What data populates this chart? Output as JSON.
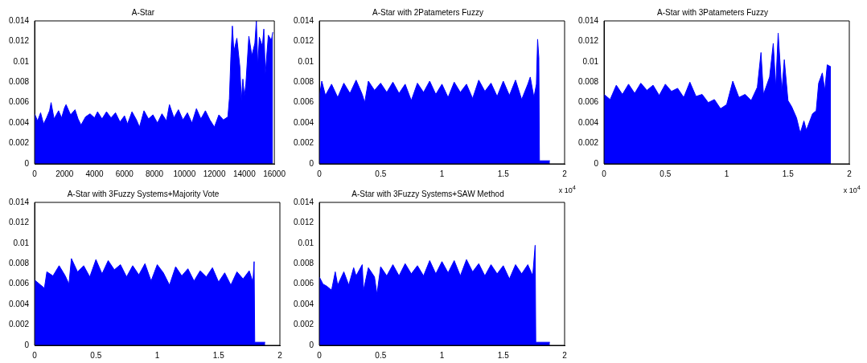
{
  "chart_data": [
    {
      "type": "area",
      "title": "A-Star",
      "xlim": [
        0,
        16000
      ],
      "xticks": [
        0,
        2000,
        4000,
        6000,
        8000,
        10000,
        12000,
        14000,
        16000
      ],
      "ylim": [
        0,
        0.014
      ],
      "yticks": [
        0,
        0.002,
        0.004,
        0.006,
        0.008,
        0.01,
        0.012,
        0.014
      ],
      "grid": false,
      "legend": false,
      "series": [
        {
          "color": "#0000ff",
          "x": [
            0,
            200,
            400,
            600,
            800,
            1000,
            1100,
            1300,
            1600,
            1800,
            2000,
            2100,
            2400,
            2700,
            2900,
            3100,
            3400,
            3700,
            4000,
            4200,
            4500,
            4800,
            5100,
            5400,
            5700,
            6000,
            6200,
            6500,
            6800,
            7000,
            7300,
            7600,
            7900,
            8200,
            8500,
            8800,
            9000,
            9300,
            9600,
            9900,
            10200,
            10500,
            10800,
            11100,
            11400,
            11700,
            12000,
            12300,
            12600,
            12900,
            13000,
            13100,
            13200,
            13300,
            13500,
            13700,
            13800,
            13900,
            14000,
            14100,
            14300,
            14500,
            14700,
            14800,
            14900,
            15000,
            15200,
            15300,
            15400,
            15600,
            15800,
            15900
          ],
          "values": [
            0.0049,
            0.0042,
            0.005,
            0.0039,
            0.0045,
            0.0052,
            0.006,
            0.0044,
            0.0052,
            0.0045,
            0.0055,
            0.0058,
            0.0048,
            0.0053,
            0.0044,
            0.0038,
            0.0046,
            0.0049,
            0.0045,
            0.0051,
            0.0044,
            0.0051,
            0.0045,
            0.005,
            0.0041,
            0.0047,
            0.0039,
            0.0051,
            0.0043,
            0.0036,
            0.0052,
            0.0044,
            0.0048,
            0.004,
            0.0049,
            0.0042,
            0.0058,
            0.0045,
            0.0053,
            0.0043,
            0.005,
            0.004,
            0.0054,
            0.0044,
            0.0052,
            0.0043,
            0.0036,
            0.0048,
            0.0043,
            0.0046,
            0.0064,
            0.0105,
            0.0135,
            0.011,
            0.0123,
            0.0095,
            0.0062,
            0.0083,
            0.0066,
            0.0078,
            0.0125,
            0.0106,
            0.0118,
            0.014,
            0.0096,
            0.0124,
            0.0115,
            0.0132,
            0.0088,
            0.0126,
            0.0121,
            0.0129
          ]
        }
      ]
    },
    {
      "type": "area",
      "title": "A-Star with 2Patameters Fuzzy",
      "annotations": [
        "x 10$^{4}$"
      ],
      "xlim": [
        0,
        2
      ],
      "xticks": [
        0,
        0.5,
        1,
        1.5,
        2
      ],
      "ylim": [
        0,
        0.014
      ],
      "yticks": [
        0,
        0.002,
        0.004,
        0.006,
        0.008,
        0.01,
        0.012,
        0.014
      ],
      "grid": false,
      "legend": false,
      "series": [
        {
          "color": "#0000ff",
          "x": [
            0,
            0.02,
            0.05,
            0.1,
            0.15,
            0.2,
            0.25,
            0.3,
            0.35,
            0.37,
            0.4,
            0.45,
            0.5,
            0.55,
            0.6,
            0.65,
            0.7,
            0.75,
            0.8,
            0.85,
            0.9,
            0.95,
            1,
            1.05,
            1.1,
            1.15,
            1.2,
            1.25,
            1.3,
            1.35,
            1.4,
            1.45,
            1.5,
            1.55,
            1.6,
            1.65,
            1.7,
            1.72,
            1.75,
            1.77,
            1.78,
            1.79,
            1.795,
            1.88
          ],
          "values": [
            0.0065,
            0.0081,
            0.0067,
            0.0078,
            0.0065,
            0.0079,
            0.0069,
            0.0082,
            0.0068,
            0.006,
            0.0081,
            0.0072,
            0.0079,
            0.007,
            0.008,
            0.0069,
            0.0078,
            0.0062,
            0.0079,
            0.007,
            0.0081,
            0.0068,
            0.0078,
            0.0065,
            0.008,
            0.007,
            0.0078,
            0.0064,
            0.0082,
            0.0071,
            0.0079,
            0.0066,
            0.0081,
            0.0067,
            0.0082,
            0.0063,
            0.0078,
            0.0085,
            0.0065,
            0.0078,
            0.0122,
            0.0104,
            0.0003,
            0.0003
          ]
        }
      ]
    },
    {
      "type": "area",
      "title": "A-Star with 3Patameters Fuzzy",
      "annotations": [
        "x 10$^{4}$"
      ],
      "xlim": [
        0,
        2
      ],
      "xticks": [
        0,
        0.5,
        1,
        1.5,
        2
      ],
      "ylim": [
        0,
        0.014
      ],
      "yticks": [
        0,
        0.002,
        0.004,
        0.006,
        0.008,
        0.01,
        0.012,
        0.014
      ],
      "grid": false,
      "legend": false,
      "series": [
        {
          "color": "#0000ff",
          "x": [
            0,
            0.05,
            0.1,
            0.15,
            0.2,
            0.25,
            0.3,
            0.35,
            0.4,
            0.45,
            0.5,
            0.55,
            0.6,
            0.65,
            0.7,
            0.75,
            0.8,
            0.85,
            0.9,
            0.95,
            1,
            1.05,
            1.1,
            1.15,
            1.2,
            1.25,
            1.28,
            1.3,
            1.35,
            1.38,
            1.4,
            1.42,
            1.45,
            1.47,
            1.5,
            1.53,
            1.57,
            1.6,
            1.63,
            1.65,
            1.7,
            1.73,
            1.75,
            1.78,
            1.8,
            1.82,
            1.85
          ],
          "values": [
            0.0068,
            0.0063,
            0.0077,
            0.0068,
            0.0078,
            0.0069,
            0.0079,
            0.0072,
            0.0077,
            0.0067,
            0.0078,
            0.0071,
            0.0074,
            0.0065,
            0.008,
            0.0066,
            0.0068,
            0.006,
            0.0063,
            0.0054,
            0.0058,
            0.0081,
            0.0065,
            0.0068,
            0.0062,
            0.0075,
            0.0109,
            0.0068,
            0.0085,
            0.0118,
            0.0075,
            0.0128,
            0.0071,
            0.0102,
            0.0062,
            0.0056,
            0.0045,
            0.003,
            0.0042,
            0.0033,
            0.0049,
            0.0052,
            0.0079,
            0.0089,
            0.0072,
            0.0097,
            0.0095
          ]
        }
      ]
    },
    {
      "type": "area",
      "title": "A-Star with 3Fuzzy Systems+Majority Vote",
      "xlim": [
        0,
        2
      ],
      "xticks": [
        0,
        0.5,
        1,
        1.5,
        2
      ],
      "ylim": [
        0,
        0.014
      ],
      "yticks": [
        0,
        0.002,
        0.004,
        0.006,
        0.008,
        0.01,
        0.012,
        0.014
      ],
      "grid": false,
      "legend": false,
      "series": [
        {
          "color": "#0000ff",
          "x": [
            0,
            0.05,
            0.08,
            0.1,
            0.15,
            0.2,
            0.25,
            0.28,
            0.3,
            0.35,
            0.4,
            0.45,
            0.5,
            0.55,
            0.6,
            0.65,
            0.7,
            0.75,
            0.8,
            0.85,
            0.9,
            0.95,
            1,
            1.05,
            1.1,
            1.15,
            1.2,
            1.25,
            1.3,
            1.35,
            1.4,
            1.45,
            1.5,
            1.55,
            1.6,
            1.65,
            1.7,
            1.75,
            1.78,
            1.79,
            1.795,
            1.88
          ],
          "values": [
            0.0064,
            0.0059,
            0.0056,
            0.0072,
            0.0068,
            0.0078,
            0.0068,
            0.006,
            0.0085,
            0.0072,
            0.0078,
            0.0067,
            0.0084,
            0.007,
            0.0083,
            0.0074,
            0.0079,
            0.0067,
            0.0078,
            0.0069,
            0.008,
            0.0063,
            0.0079,
            0.0071,
            0.0059,
            0.0077,
            0.0068,
            0.0075,
            0.0063,
            0.0073,
            0.0067,
            0.0076,
            0.0062,
            0.0071,
            0.0059,
            0.0072,
            0.0065,
            0.0073,
            0.0062,
            0.0082,
            0.0003,
            0.0003
          ]
        }
      ]
    },
    {
      "type": "area",
      "title": "A-Star with 3Fuzzy Systems+SAW Method",
      "xlim": [
        0,
        2
      ],
      "xticks": [
        0,
        0.5,
        1,
        1.5,
        2
      ],
      "ylim": [
        0,
        0.014
      ],
      "yticks": [
        0,
        0.002,
        0.004,
        0.006,
        0.008,
        0.01,
        0.012,
        0.014
      ],
      "grid": false,
      "legend": false,
      "series": [
        {
          "color": "#0000ff",
          "x": [
            0,
            0.03,
            0.06,
            0.1,
            0.13,
            0.15,
            0.2,
            0.24,
            0.28,
            0.3,
            0.35,
            0.36,
            0.4,
            0.45,
            0.47,
            0.5,
            0.55,
            0.6,
            0.65,
            0.7,
            0.75,
            0.8,
            0.85,
            0.9,
            0.95,
            1,
            1.05,
            1.1,
            1.15,
            1.2,
            1.25,
            1.3,
            1.35,
            1.4,
            1.45,
            1.5,
            1.55,
            1.6,
            1.65,
            1.7,
            1.74,
            1.76,
            1.765,
            1.88
          ],
          "values": [
            0.0067,
            0.006,
            0.0058,
            0.0054,
            0.0072,
            0.0059,
            0.0072,
            0.0059,
            0.0076,
            0.0068,
            0.0079,
            0.0054,
            0.0076,
            0.0067,
            0.005,
            0.0077,
            0.0068,
            0.0079,
            0.0068,
            0.008,
            0.007,
            0.0078,
            0.0068,
            0.0083,
            0.007,
            0.0082,
            0.0071,
            0.0083,
            0.0068,
            0.0084,
            0.0072,
            0.008,
            0.0068,
            0.0079,
            0.007,
            0.0078,
            0.0065,
            0.0079,
            0.007,
            0.0079,
            0.0068,
            0.0098,
            0.0003,
            0.0003
          ]
        }
      ]
    }
  ]
}
